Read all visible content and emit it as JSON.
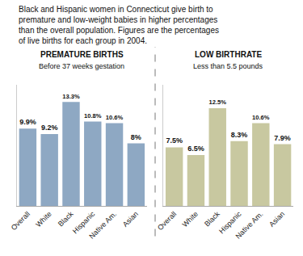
{
  "title": "Black and Hispanic women in Connecticut give birth to\npremature and low-weight babies in higher percentages\nthan the overall population. Figures are the percentages\nof live births for each group in 2004.",
  "chart_data": [
    {
      "type": "bar",
      "title": "PREMATURE BIRTHS",
      "subtitle": "Before 37 weeks gestation",
      "categories": [
        "Overall",
        "White",
        "Black",
        "Hispanic",
        "Native Am.",
        "Asian"
      ],
      "values": [
        9.9,
        9.2,
        13.3,
        10.8,
        10.6,
        8.0
      ],
      "value_labels": [
        "9.9%",
        "9.2%",
        "13.3%",
        "10.8%",
        "10.6%",
        "8%"
      ],
      "color": "#8ea8c3",
      "ylim": [
        0,
        15.5
      ],
      "grid": false,
      "data_labels": true,
      "tick_labels": "x"
    },
    {
      "type": "bar",
      "title": "LOW BIRTHRATE",
      "subtitle": "Less than 5.5 pounds",
      "categories": [
        "Overall",
        "White",
        "Black",
        "Hispanic",
        "Native Am.",
        "Asian"
      ],
      "values": [
        7.5,
        6.5,
        12.5,
        8.3,
        10.6,
        7.9
      ],
      "value_labels": [
        "7.5%",
        "6.5%",
        "12.5%",
        "8.3%",
        "10.6%",
        "7.9%"
      ],
      "color": "#c8c8a0",
      "ylim": [
        0,
        15.5
      ],
      "grid": false,
      "data_labels": true,
      "tick_labels": "x"
    }
  ]
}
